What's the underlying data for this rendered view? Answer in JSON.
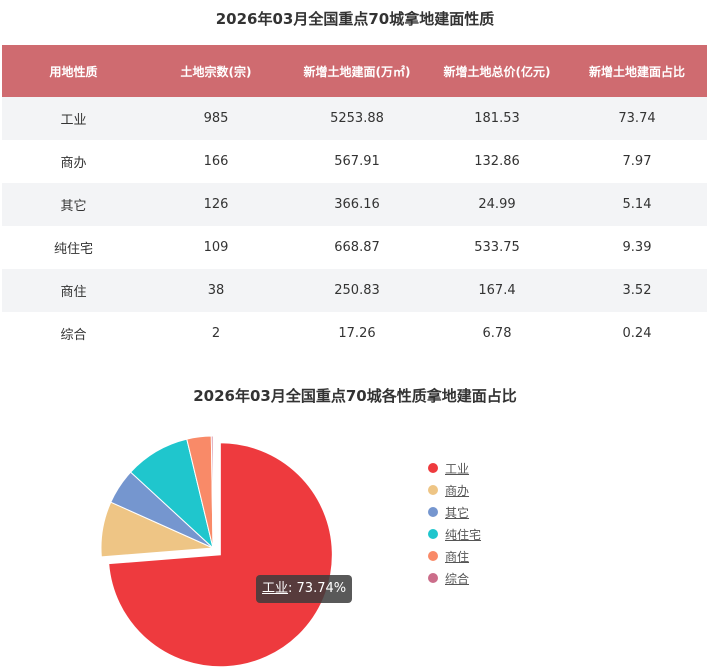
{
  "table": {
    "title": "2026年03月全国重点70城拿地建面性质",
    "headers": [
      "用地性质",
      "土地宗数(宗)",
      "新增土地建面(万㎡)",
      "新增土地总价(亿元)",
      "新增土地建面占比"
    ],
    "rows": [
      [
        "工业",
        "985",
        "5253.88",
        "181.53",
        "73.74"
      ],
      [
        "商办",
        "166",
        "567.91",
        "132.86",
        "7.97"
      ],
      [
        "其它",
        "126",
        "366.16",
        "24.99",
        "5.14"
      ],
      [
        "纯住宅",
        "109",
        "668.87",
        "533.75",
        "9.39"
      ],
      [
        "商住",
        "38",
        "250.83",
        "167.4",
        "3.52"
      ],
      [
        "综合",
        "2",
        "17.26",
        "6.78",
        "0.24"
      ]
    ]
  },
  "chart_data": {
    "type": "pie",
    "title": "2026年03月全国重点70城各性质拿地建面占比",
    "categories": [
      "工业",
      "商办",
      "其它",
      "纯住宅",
      "商住",
      "综合"
    ],
    "values": [
      73.74,
      7.97,
      5.14,
      9.39,
      3.52,
      0.24
    ],
    "colors": [
      "#ee3a3e",
      "#eec585",
      "#7596cf",
      "#1fc6cd",
      "#f98a68",
      "#cb6d8a"
    ],
    "highlighted": "工业",
    "legend_position": "right",
    "tooltip": {
      "name": "工业",
      "value": "73.74%"
    }
  }
}
